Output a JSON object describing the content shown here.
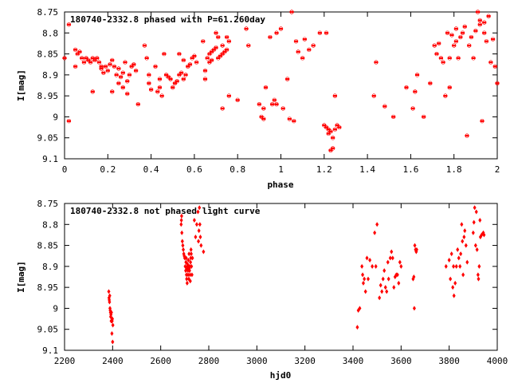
{
  "chart_data": [
    {
      "type": "scatter",
      "title": "180740-2332.8 phased with P=61.260day",
      "xlabel": "phase",
      "ylabel": "I[mag]",
      "xlim": [
        0,
        2
      ],
      "ylim": [
        9.1,
        8.75
      ],
      "y_inverted": true,
      "grid": false,
      "marker": "cross",
      "color": "#ff0000",
      "xticks": [
        "0",
        "0.2",
        "0.4",
        "0.6",
        "0.8",
        "1",
        "1.2",
        "1.4",
        "1.6",
        "1.8",
        "2"
      ],
      "yticks": [
        "8.75",
        "8.8",
        "8.85",
        "8.9",
        "8.95",
        "9",
        "9.05",
        "9.1"
      ],
      "points": [
        [
          0.0,
          8.86
        ],
        [
          0.02,
          8.78
        ],
        [
          0.02,
          9.01
        ],
        [
          0.05,
          8.84
        ],
        [
          0.05,
          8.88
        ],
        [
          0.06,
          8.85
        ],
        [
          0.07,
          8.845
        ],
        [
          0.08,
          8.86
        ],
        [
          0.09,
          8.87
        ],
        [
          0.1,
          8.86
        ],
        [
          0.11,
          8.865
        ],
        [
          0.12,
          8.87
        ],
        [
          0.13,
          8.86
        ],
        [
          0.13,
          8.94
        ],
        [
          0.14,
          8.865
        ],
        [
          0.15,
          8.86
        ],
        [
          0.16,
          8.87
        ],
        [
          0.17,
          8.88
        ],
        [
          0.17,
          8.885
        ],
        [
          0.18,
          8.895
        ],
        [
          0.19,
          8.88
        ],
        [
          0.2,
          8.89
        ],
        [
          0.21,
          8.875
        ],
        [
          0.22,
          8.865
        ],
        [
          0.22,
          8.94
        ],
        [
          0.23,
          8.88
        ],
        [
          0.24,
          8.9
        ],
        [
          0.25,
          8.92
        ],
        [
          0.25,
          8.885
        ],
        [
          0.26,
          8.905
        ],
        [
          0.27,
          8.93
        ],
        [
          0.27,
          8.895
        ],
        [
          0.28,
          8.87
        ],
        [
          0.29,
          8.915
        ],
        [
          0.29,
          8.945
        ],
        [
          0.3,
          8.9
        ],
        [
          0.31,
          8.88
        ],
        [
          0.32,
          8.875
        ],
        [
          0.33,
          8.89
        ],
        [
          0.34,
          8.97
        ],
        [
          0.37,
          8.83
        ],
        [
          0.38,
          8.86
        ],
        [
          0.39,
          8.9
        ],
        [
          0.39,
          8.92
        ],
        [
          0.4,
          8.935
        ],
        [
          0.42,
          8.88
        ],
        [
          0.43,
          8.94
        ],
        [
          0.44,
          8.91
        ],
        [
          0.44,
          8.93
        ],
        [
          0.45,
          8.95
        ],
        [
          0.46,
          8.85
        ],
        [
          0.47,
          8.9
        ],
        [
          0.48,
          8.905
        ],
        [
          0.49,
          8.91
        ],
        [
          0.5,
          8.93
        ],
        [
          0.51,
          8.92
        ],
        [
          0.52,
          8.915
        ],
        [
          0.53,
          8.9
        ],
        [
          0.53,
          8.85
        ],
        [
          0.54,
          8.895
        ],
        [
          0.55,
          8.91
        ],
        [
          0.55,
          8.865
        ],
        [
          0.56,
          8.9
        ],
        [
          0.57,
          8.88
        ],
        [
          0.58,
          8.875
        ],
        [
          0.59,
          8.86
        ],
        [
          0.6,
          8.855
        ],
        [
          0.61,
          8.87
        ],
        [
          0.64,
          8.82
        ],
        [
          0.65,
          8.89
        ],
        [
          0.65,
          8.91
        ],
        [
          0.66,
          8.86
        ],
        [
          0.67,
          8.85
        ],
        [
          0.67,
          8.87
        ],
        [
          0.68,
          8.865
        ],
        [
          0.68,
          8.845
        ],
        [
          0.69,
          8.84
        ],
        [
          0.7,
          8.8
        ],
        [
          0.7,
          8.835
        ],
        [
          0.71,
          8.86
        ],
        [
          0.71,
          8.81
        ],
        [
          0.72,
          8.855
        ],
        [
          0.73,
          8.85
        ],
        [
          0.73,
          8.83
        ],
        [
          0.74,
          8.845
        ],
        [
          0.75,
          8.81
        ],
        [
          0.75,
          8.84
        ],
        [
          0.76,
          8.82
        ],
        [
          0.73,
          8.98
        ],
        [
          0.76,
          8.95
        ],
        [
          0.8,
          8.96
        ],
        [
          0.84,
          8.79
        ],
        [
          0.85,
          8.83
        ],
        [
          0.9,
          8.97
        ],
        [
          0.91,
          9.0
        ],
        [
          0.92,
          9.005
        ],
        [
          0.92,
          8.98
        ],
        [
          0.93,
          8.93
        ],
        [
          0.95,
          8.81
        ],
        [
          0.96,
          8.97
        ],
        [
          0.97,
          8.96
        ],
        [
          0.98,
          8.97
        ],
        [
          0.98,
          8.8
        ],
        [
          1.0,
          8.79
        ],
        [
          1.01,
          8.98
        ],
        [
          1.03,
          8.91
        ],
        [
          1.04,
          9.005
        ],
        [
          1.05,
          8.75
        ],
        [
          1.06,
          9.01
        ],
        [
          1.07,
          8.82
        ],
        [
          1.08,
          8.845
        ],
        [
          1.1,
          8.86
        ],
        [
          1.11,
          8.815
        ],
        [
          1.13,
          8.84
        ],
        [
          1.15,
          8.83
        ],
        [
          1.18,
          8.8
        ],
        [
          1.2,
          9.02
        ],
        [
          1.21,
          8.8
        ],
        [
          1.21,
          9.025
        ],
        [
          1.22,
          9.03
        ],
        [
          1.22,
          9.04
        ],
        [
          1.23,
          9.035
        ],
        [
          1.23,
          9.08
        ],
        [
          1.24,
          9.05
        ],
        [
          1.24,
          9.075
        ],
        [
          1.25,
          9.03
        ],
        [
          1.25,
          8.95
        ],
        [
          1.26,
          9.02
        ],
        [
          1.27,
          9.025
        ],
        [
          1.43,
          8.95
        ],
        [
          1.44,
          8.87
        ],
        [
          1.48,
          8.975
        ],
        [
          1.52,
          9.0
        ],
        [
          1.58,
          8.93
        ],
        [
          1.61,
          8.98
        ],
        [
          1.62,
          8.94
        ],
        [
          1.63,
          8.9
        ],
        [
          1.66,
          9.0
        ],
        [
          1.69,
          8.92
        ],
        [
          1.71,
          8.83
        ],
        [
          1.72,
          8.85
        ],
        [
          1.73,
          8.825
        ],
        [
          1.74,
          8.86
        ],
        [
          1.75,
          8.87
        ],
        [
          1.76,
          8.95
        ],
        [
          1.77,
          8.8
        ],
        [
          1.78,
          8.86
        ],
        [
          1.78,
          8.93
        ],
        [
          1.79,
          8.805
        ],
        [
          1.8,
          8.83
        ],
        [
          1.81,
          8.79
        ],
        [
          1.81,
          8.82
        ],
        [
          1.82,
          8.86
        ],
        [
          1.83,
          8.81
        ],
        [
          1.84,
          8.8
        ],
        [
          1.85,
          8.785
        ],
        [
          1.86,
          9.045
        ],
        [
          1.87,
          8.83
        ],
        [
          1.88,
          8.81
        ],
        [
          1.89,
          8.86
        ],
        [
          1.9,
          8.795
        ],
        [
          1.91,
          8.75
        ],
        [
          1.92,
          8.77
        ],
        [
          1.92,
          8.78
        ],
        [
          1.93,
          9.01
        ],
        [
          1.94,
          8.775
        ],
        [
          1.94,
          8.8
        ],
        [
          1.95,
          8.82
        ],
        [
          1.96,
          8.76
        ],
        [
          1.97,
          8.87
        ],
        [
          1.99,
          8.88
        ],
        [
          2.0,
          8.92
        ],
        [
          1.98,
          8.815
        ]
      ]
    },
    {
      "type": "scatter",
      "title": "180740-2332.8 not phased light curve",
      "xlabel": "hjd0",
      "ylabel": "I[mag]",
      "xlim": [
        2200,
        4000
      ],
      "ylim": [
        9.1,
        8.75
      ],
      "y_inverted": true,
      "grid": false,
      "marker": "diamond",
      "color": "#ff0000",
      "xticks": [
        "2200",
        "2400",
        "2600",
        "2800",
        "3000",
        "3200",
        "3400",
        "3600",
        "3800",
        "4000"
      ],
      "yticks": [
        "8.75",
        "8.8",
        "8.85",
        "8.9",
        "8.95",
        "9",
        "9.05",
        "9.1"
      ],
      "points": [
        [
          2384,
          8.96
        ],
        [
          2385,
          8.975
        ],
        [
          2386,
          8.98
        ],
        [
          2387,
          8.985
        ],
        [
          2388,
          8.97
        ],
        [
          2389,
          9.0
        ],
        [
          2390,
          9.005
        ],
        [
          2391,
          9.01
        ],
        [
          2392,
          9.02
        ],
        [
          2393,
          9.015
        ],
        [
          2394,
          9.03
        ],
        [
          2395,
          9.01
        ],
        [
          2396,
          9.03
        ],
        [
          2397,
          9.06
        ],
        [
          2398,
          9.03
        ],
        [
          2399,
          9.025
        ],
        [
          2400,
          9.08
        ],
        [
          2401,
          9.04
        ],
        [
          2685,
          8.8
        ],
        [
          2686,
          8.79
        ],
        [
          2687,
          8.78
        ],
        [
          2688,
          8.82
        ],
        [
          2690,
          8.84
        ],
        [
          2692,
          8.85
        ],
        [
          2694,
          8.86
        ],
        [
          2696,
          8.87
        ],
        [
          2698,
          8.875
        ],
        [
          2700,
          8.88
        ],
        [
          2702,
          8.9
        ],
        [
          2704,
          8.91
        ],
        [
          2705,
          8.89
        ],
        [
          2706,
          8.88
        ],
        [
          2707,
          8.92
        ],
        [
          2708,
          8.93
        ],
        [
          2709,
          8.905
        ],
        [
          2710,
          8.94
        ],
        [
          2711,
          8.9
        ],
        [
          2712,
          8.895
        ],
        [
          2713,
          8.91
        ],
        [
          2714,
          8.92
        ],
        [
          2715,
          8.885
        ],
        [
          2716,
          8.9
        ],
        [
          2717,
          8.93
        ],
        [
          2718,
          8.87
        ],
        [
          2719,
          8.905
        ],
        [
          2720,
          8.91
        ],
        [
          2721,
          8.9
        ],
        [
          2722,
          8.92
        ],
        [
          2723,
          8.935
        ],
        [
          2724,
          8.89
        ],
        [
          2725,
          8.88
        ],
        [
          2726,
          8.86
        ],
        [
          2727,
          8.87
        ],
        [
          2728,
          8.9
        ],
        [
          2730,
          8.92
        ],
        [
          2732,
          8.88
        ],
        [
          2740,
          8.79
        ],
        [
          2745,
          8.83
        ],
        [
          2750,
          8.8
        ],
        [
          2755,
          8.77
        ],
        [
          2757,
          8.84
        ],
        [
          2759,
          8.815
        ],
        [
          2761,
          8.76
        ],
        [
          2763,
          8.8
        ],
        [
          2765,
          8.83
        ],
        [
          2768,
          8.85
        ],
        [
          2778,
          8.865
        ],
        [
          3418,
          9.045
        ],
        [
          3422,
          9.005
        ],
        [
          3428,
          9.0
        ],
        [
          3437,
          8.9
        ],
        [
          3440,
          8.92
        ],
        [
          3443,
          8.94
        ],
        [
          3447,
          8.93
        ],
        [
          3452,
          8.96
        ],
        [
          3458,
          8.88
        ],
        [
          3463,
          8.93
        ],
        [
          3470,
          8.885
        ],
        [
          3480,
          8.9
        ],
        [
          3490,
          8.82
        ],
        [
          3495,
          8.9
        ],
        [
          3500,
          8.8
        ],
        [
          3510,
          8.975
        ],
        [
          3515,
          8.945
        ],
        [
          3520,
          8.96
        ],
        [
          3525,
          8.93
        ],
        [
          3530,
          8.91
        ],
        [
          3535,
          8.95
        ],
        [
          3540,
          8.96
        ],
        [
          3545,
          8.89
        ],
        [
          3548,
          8.93
        ],
        [
          3555,
          8.88
        ],
        [
          3560,
          8.865
        ],
        [
          3565,
          8.88
        ],
        [
          3570,
          8.95
        ],
        [
          3575,
          8.925
        ],
        [
          3580,
          8.92
        ],
        [
          3585,
          8.92
        ],
        [
          3590,
          8.94
        ],
        [
          3595,
          8.89
        ],
        [
          3600,
          8.9
        ],
        [
          3650,
          8.93
        ],
        [
          3653,
          8.925
        ],
        [
          3655,
          9.0
        ],
        [
          3657,
          8.85
        ],
        [
          3660,
          8.86
        ],
        [
          3663,
          8.865
        ],
        [
          3665,
          8.86
        ],
        [
          3787,
          8.9
        ],
        [
          3800,
          8.885
        ],
        [
          3805,
          8.93
        ],
        [
          3810,
          8.87
        ],
        [
          3815,
          8.95
        ],
        [
          3818,
          8.9
        ],
        [
          3820,
          8.97
        ],
        [
          3825,
          8.94
        ],
        [
          3830,
          8.9
        ],
        [
          3835,
          8.86
        ],
        [
          3840,
          8.88
        ],
        [
          3845,
          8.9
        ],
        [
          3848,
          8.87
        ],
        [
          3852,
          8.8
        ],
        [
          3855,
          8.84
        ],
        [
          3858,
          8.92
        ],
        [
          3862,
          8.83
        ],
        [
          3865,
          8.815
        ],
        [
          3870,
          8.85
        ],
        [
          3875,
          8.89
        ],
        [
          3900,
          8.82
        ],
        [
          3903,
          8.795
        ],
        [
          3906,
          8.76
        ],
        [
          3910,
          8.85
        ],
        [
          3913,
          8.77
        ],
        [
          3916,
          8.86
        ],
        [
          3920,
          8.92
        ],
        [
          3922,
          8.93
        ],
        [
          3925,
          8.9
        ],
        [
          3928,
          8.79
        ],
        [
          3930,
          8.83
        ],
        [
          3935,
          8.825
        ],
        [
          3942,
          8.82
        ],
        [
          3945,
          8.825
        ]
      ]
    }
  ]
}
